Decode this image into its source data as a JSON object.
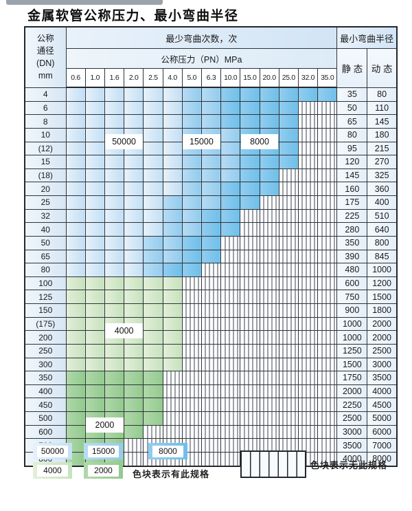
{
  "title": "金属软管公称压力、最小弯曲半径",
  "table": {
    "header": {
      "dn_label_lines": [
        "公称",
        "通径",
        "(DN)",
        "mm"
      ],
      "cycles_label": "最少弯曲次数，次",
      "pressure_label": "公称压力（PN）MPa",
      "pressure_columns": [
        "0.6",
        "1.0",
        "1.6",
        "2.0",
        "2.5",
        "4.0",
        "5.0",
        "6.3",
        "10.0",
        "15.0",
        "20.0",
        "25.0",
        "32.0",
        "35.0"
      ],
      "radius_label": "最小弯曲半径",
      "static_label": "静 态",
      "dynamic_label": "动 态"
    },
    "rows": [
      {
        "dn": "4",
        "cells": [
          "L",
          "L",
          "L",
          "L",
          "L",
          "L",
          "M",
          "M",
          "D",
          "D",
          "D",
          "D",
          "D",
          "D"
        ],
        "static": "35",
        "dynamic": "80"
      },
      {
        "dn": "6",
        "cells": [
          "L",
          "L",
          "L",
          "L",
          "L",
          "L",
          "M",
          "M",
          "D",
          "D",
          "D",
          "D",
          "x",
          "x"
        ],
        "static": "50",
        "dynamic": "110"
      },
      {
        "dn": "8",
        "cells": [
          "L",
          "L",
          "L",
          "L",
          "L",
          "L",
          "M",
          "M",
          "D",
          "D",
          "D",
          "D",
          "x",
          "x"
        ],
        "static": "65",
        "dynamic": "145"
      },
      {
        "dn": "10",
        "cells": [
          "L",
          "L",
          "L",
          "L",
          "L",
          "L",
          "M",
          "M",
          "M",
          "D",
          "D",
          "D",
          "x",
          "x"
        ],
        "static": "80",
        "dynamic": "180"
      },
      {
        "dn": "(12)",
        "cells": [
          "L",
          "L",
          "L",
          "L",
          "L",
          "L",
          "M",
          "M",
          "M",
          "D",
          "D",
          "D",
          "x",
          "x"
        ],
        "static": "95",
        "dynamic": "215"
      },
      {
        "dn": "15",
        "cells": [
          "L",
          "L",
          "L",
          "L",
          "L",
          "L",
          "M",
          "M",
          "M",
          "D",
          "D",
          "D",
          "x",
          "x"
        ],
        "static": "120",
        "dynamic": "270"
      },
      {
        "dn": "(18)",
        "cells": [
          "L",
          "L",
          "L",
          "L",
          "L",
          "L",
          "M",
          "M",
          "M",
          "D",
          "D",
          "x",
          "x",
          "x"
        ],
        "static": "145",
        "dynamic": "325"
      },
      {
        "dn": "20",
        "cells": [
          "L",
          "L",
          "L",
          "L",
          "L",
          "L",
          "M",
          "M",
          "D",
          "D",
          "D",
          "x",
          "x",
          "x"
        ],
        "static": "160",
        "dynamic": "360"
      },
      {
        "dn": "25",
        "cells": [
          "L",
          "L",
          "L",
          "L",
          "L",
          "M",
          "M",
          "M",
          "D",
          "D",
          "x",
          "x",
          "x",
          "x"
        ],
        "static": "175",
        "dynamic": "400"
      },
      {
        "dn": "32",
        "cells": [
          "L",
          "L",
          "L",
          "L",
          "L",
          "M",
          "M",
          "D",
          "D",
          "x",
          "x",
          "x",
          "x",
          "x"
        ],
        "static": "225",
        "dynamic": "510"
      },
      {
        "dn": "40",
        "cells": [
          "L",
          "L",
          "L",
          "L",
          "L",
          "M",
          "M",
          "D",
          "D",
          "x",
          "x",
          "x",
          "x",
          "x"
        ],
        "static": "280",
        "dynamic": "640"
      },
      {
        "dn": "50",
        "cells": [
          "L",
          "L",
          "L",
          "L",
          "M",
          "M",
          "D",
          "D",
          "x",
          "x",
          "x",
          "x",
          "x",
          "x"
        ],
        "static": "350",
        "dynamic": "800"
      },
      {
        "dn": "65",
        "cells": [
          "L",
          "L",
          "L",
          "L",
          "M",
          "M",
          "D",
          "D",
          "x",
          "x",
          "x",
          "x",
          "x",
          "x"
        ],
        "static": "390",
        "dynamic": "845"
      },
      {
        "dn": "80",
        "cells": [
          "L",
          "L",
          "L",
          "L",
          "M",
          "D",
          "D",
          "x",
          "x",
          "x",
          "x",
          "x",
          "x",
          "x"
        ],
        "static": "480",
        "dynamic": "1000"
      },
      {
        "dn": "100",
        "cells": [
          "g",
          "g",
          "g",
          "g",
          "g",
          "g",
          "x",
          "x",
          "x",
          "x",
          "x",
          "x",
          "x",
          "x"
        ],
        "static": "600",
        "dynamic": "1200"
      },
      {
        "dn": "125",
        "cells": [
          "g",
          "g",
          "g",
          "g",
          "g",
          "g",
          "x",
          "x",
          "x",
          "x",
          "x",
          "x",
          "x",
          "x"
        ],
        "static": "750",
        "dynamic": "1500"
      },
      {
        "dn": "150",
        "cells": [
          "g",
          "g",
          "g",
          "g",
          "g",
          "g",
          "x",
          "x",
          "x",
          "x",
          "x",
          "x",
          "x",
          "x"
        ],
        "static": "900",
        "dynamic": "1800"
      },
      {
        "dn": "(175)",
        "cells": [
          "g",
          "g",
          "g",
          "g",
          "g",
          "g",
          "x",
          "x",
          "x",
          "x",
          "x",
          "x",
          "x",
          "x"
        ],
        "static": "1000",
        "dynamic": "2000"
      },
      {
        "dn": "200",
        "cells": [
          "g",
          "g",
          "g",
          "g",
          "g",
          "g",
          "x",
          "x",
          "x",
          "x",
          "x",
          "x",
          "x",
          "x"
        ],
        "static": "1000",
        "dynamic": "2000"
      },
      {
        "dn": "250",
        "cells": [
          "g",
          "g",
          "g",
          "g",
          "g",
          "g",
          "x",
          "x",
          "x",
          "x",
          "x",
          "x",
          "x",
          "x"
        ],
        "static": "1250",
        "dynamic": "2500"
      },
      {
        "dn": "300",
        "cells": [
          "g",
          "g",
          "g",
          "g",
          "g",
          "g",
          "x",
          "x",
          "x",
          "x",
          "x",
          "x",
          "x",
          "x"
        ],
        "static": "1500",
        "dynamic": "3000"
      },
      {
        "dn": "350",
        "cells": [
          "G",
          "G",
          "G",
          "G",
          "G",
          "x",
          "x",
          "x",
          "x",
          "x",
          "x",
          "x",
          "x",
          "x"
        ],
        "static": "1750",
        "dynamic": "3500"
      },
      {
        "dn": "400",
        "cells": [
          "G",
          "G",
          "G",
          "G",
          "G",
          "x",
          "x",
          "x",
          "x",
          "x",
          "x",
          "x",
          "x",
          "x"
        ],
        "static": "2000",
        "dynamic": "4000"
      },
      {
        "dn": "450",
        "cells": [
          "G",
          "G",
          "G",
          "G",
          "G",
          "x",
          "x",
          "x",
          "x",
          "x",
          "x",
          "x",
          "x",
          "x"
        ],
        "static": "2250",
        "dynamic": "4500"
      },
      {
        "dn": "500",
        "cells": [
          "G",
          "G",
          "G",
          "G",
          "G",
          "x",
          "x",
          "x",
          "x",
          "x",
          "x",
          "x",
          "x",
          "x"
        ],
        "static": "2500",
        "dynamic": "5000"
      },
      {
        "dn": "600",
        "cells": [
          "G",
          "G",
          "G",
          "G",
          "x",
          "x",
          "x",
          "x",
          "x",
          "x",
          "x",
          "x",
          "x",
          "x"
        ],
        "static": "3000",
        "dynamic": "6000"
      },
      {
        "dn": "700",
        "cells": [
          "G",
          "G",
          "G",
          "x",
          "x",
          "x",
          "x",
          "x",
          "x",
          "x",
          "x",
          "x",
          "x",
          "x"
        ],
        "static": "3500",
        "dynamic": "7000"
      },
      {
        "dn": "800",
        "cells": [
          "G",
          "G",
          "G",
          "x",
          "x",
          "x",
          "x",
          "x",
          "x",
          "x",
          "x",
          "x",
          "x",
          "x"
        ],
        "static": "4000",
        "dynamic": "8000"
      }
    ],
    "overlays": [
      {
        "text": "50000",
        "row_index": 3,
        "col_start": 2,
        "col_span": 2
      },
      {
        "text": "15000",
        "row_index": 3,
        "col_start": 6,
        "col_span": 2
      },
      {
        "text": "8000",
        "row_index": 3,
        "col_start": 9,
        "col_span": 2
      },
      {
        "text": "4000",
        "row_index": 17,
        "col_start": 2,
        "col_span": 2
      },
      {
        "text": "2000",
        "row_index": 24,
        "col_start": 1,
        "col_span": 2
      }
    ],
    "cell_class_meaning": {
      "L": "50000次",
      "M": "15000次",
      "D": "8000次",
      "g": "4000次",
      "G": "2000次",
      "x": "无此规格"
    }
  },
  "legend": {
    "blocks": [
      {
        "label": "50000",
        "class": "L"
      },
      {
        "label": "15000",
        "class": "M"
      },
      {
        "label": "8000",
        "class": "D"
      },
      {
        "label": "4000",
        "class": "g"
      },
      {
        "label": "2000",
        "class": "G"
      }
    ],
    "has_spec_text": "色块表示有此规格",
    "no_spec_text": "色块表示无此规格"
  },
  "colors": {
    "L0": "#e7f1fa",
    "L1": "#c2dff5",
    "M0": "#b7dcf4",
    "M1": "#93cbee",
    "D0": "#92cdf0",
    "D1": "#6fbfe9",
    "g0": "#e3efd9",
    "g1": "#c6e2bd",
    "G0": "#b0d8aa",
    "G1": "#92ca8e",
    "hatch": "#3c4248"
  }
}
